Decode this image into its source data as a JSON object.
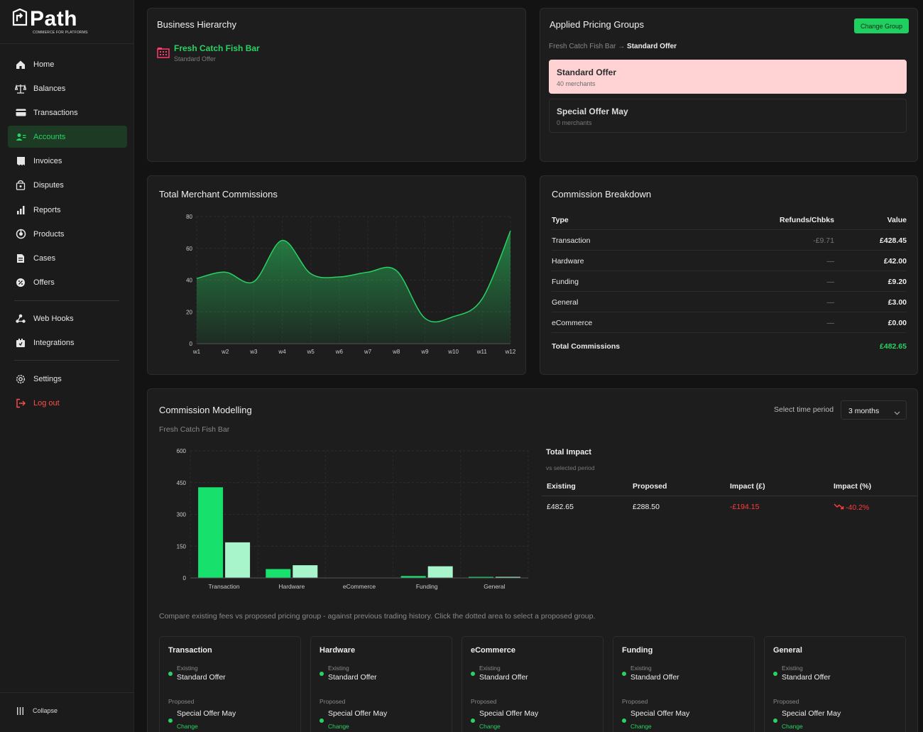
{
  "brand": {
    "name": "Path",
    "tagline": "COMMERCE FOR PLATFORMS"
  },
  "nav": {
    "items": [
      {
        "label": "Home",
        "icon": "home-icon"
      },
      {
        "label": "Balances",
        "icon": "scale-icon"
      },
      {
        "label": "Transactions",
        "icon": "card-icon"
      },
      {
        "label": "Accounts",
        "icon": "users-icon",
        "active": true
      },
      {
        "label": "Invoices",
        "icon": "invoice-icon"
      },
      {
        "label": "Disputes",
        "icon": "disputes-icon"
      },
      {
        "label": "Reports",
        "icon": "bar-chart-icon"
      },
      {
        "label": "Products",
        "icon": "products-icon"
      },
      {
        "label": "Cases",
        "icon": "file-icon"
      },
      {
        "label": "Offers",
        "icon": "offers-icon"
      }
    ],
    "dev_items": [
      {
        "label": "Web Hooks",
        "icon": "webhook-icon"
      },
      {
        "label": "Integrations",
        "icon": "integrations-icon"
      }
    ],
    "settings_label": "Settings",
    "logout_label": "Log out",
    "collapse_label": "Collapse"
  },
  "business_hierarchy": {
    "title": "Business Hierarchy",
    "merchant_name": "Fresh Catch Fish Bar",
    "merchant_offer": "Standard Offer"
  },
  "pricing_groups": {
    "title": "Applied Pricing Groups",
    "change_button": "Change Group",
    "breadcrumb_parent": "Fresh Catch Fish Bar",
    "breadcrumb_arrow": "→",
    "breadcrumb_current": "Standard Offer",
    "groups": [
      {
        "name": "Standard Offer",
        "merchants": "40 merchants",
        "selected": true
      },
      {
        "name": "Special Offer May",
        "merchants": "0 merchants",
        "selected": false
      }
    ]
  },
  "total_commissions": {
    "title": "Total Merchant Commissions"
  },
  "commission_breakdown": {
    "title": "Commission Breakdown",
    "headers": {
      "type": "Type",
      "refunds": "Refunds/Chbks",
      "value": "Value"
    },
    "rows": [
      {
        "type": "Transaction",
        "refunds": "-£9.71",
        "value": "£428.45"
      },
      {
        "type": "Hardware",
        "refunds": "—",
        "value": "£42.00"
      },
      {
        "type": "Funding",
        "refunds": "—",
        "value": "£9.20"
      },
      {
        "type": "General",
        "refunds": "—",
        "value": "£3.00"
      },
      {
        "type": "eCommerce",
        "refunds": "—",
        "value": "£0.00"
      }
    ],
    "total_label": "Total Commissions",
    "total_value": "£482.65",
    "accent": "#2ad163"
  },
  "modelling": {
    "title": "Commission Modelling",
    "subtitle": "Fresh Catch Fish Bar",
    "time_period_label": "Select time period",
    "time_period_value": "3 months",
    "impact": {
      "title": "Total Impact",
      "subtitle": "vs selected period",
      "headers": [
        "Existing",
        "Proposed",
        "Impact (£)",
        "Impact (%)"
      ],
      "existing": "£482.65",
      "proposed": "£288.50",
      "impact_gbp": "-£194.15",
      "impact_pct": "-40.2%",
      "negative_color": "#ff3b3b"
    },
    "compare_note": "Compare existing fees vs proposed pricing group - against previous trading history. Click the dotted area to select a proposed group.",
    "cards": [
      {
        "title": "Transaction",
        "existing_label": "Existing",
        "existing": "Standard Offer",
        "proposed_label": "Proposed",
        "proposed": "Special Offer May",
        "change": "Change"
      },
      {
        "title": "Hardware",
        "existing_label": "Existing",
        "existing": "Standard Offer",
        "proposed_label": "Proposed",
        "proposed": "Special Offer May",
        "change": "Change"
      },
      {
        "title": "eCommerce",
        "existing_label": "Existing",
        "existing": "Standard Offer",
        "proposed_label": "Proposed",
        "proposed": "Special Offer May",
        "change": "Change"
      },
      {
        "title": "Funding",
        "existing_label": "Existing",
        "existing": "Standard Offer",
        "proposed_label": "Proposed",
        "proposed": "Special Offer May",
        "change": "Change"
      },
      {
        "title": "General",
        "existing_label": "Existing",
        "existing": "Standard Offer",
        "proposed_label": "Proposed",
        "proposed": "Special Offer May",
        "change": "Change"
      }
    ]
  },
  "chart_data": [
    {
      "type": "area",
      "x": [
        "w1",
        "w2",
        "w3",
        "w4",
        "w5",
        "w6",
        "w7",
        "w8",
        "w9",
        "w10",
        "w11",
        "w12"
      ],
      "series": [
        {
          "values": [
            41,
            45,
            39,
            65,
            44,
            42,
            45,
            46,
            16,
            17,
            28,
            71
          ]
        }
      ],
      "ylim": [
        0,
        80
      ],
      "yticks": [
        0,
        20,
        40,
        60,
        80
      ],
      "grid": true,
      "color": "#2ad163"
    },
    {
      "type": "bar",
      "categories": [
        "Transaction",
        "Hardware",
        "eCommerce",
        "Funding",
        "General"
      ],
      "series": [
        {
          "values": [
            428,
            42,
            0,
            9,
            3
          ],
          "color": "#18e06c"
        },
        {
          "values": [
            168,
            60,
            0,
            55,
            3
          ],
          "color": "#a8f5cc"
        }
      ],
      "ylim": [
        0,
        600
      ],
      "yticks": [
        0,
        150,
        300,
        450,
        600
      ],
      "grid": true
    }
  ]
}
